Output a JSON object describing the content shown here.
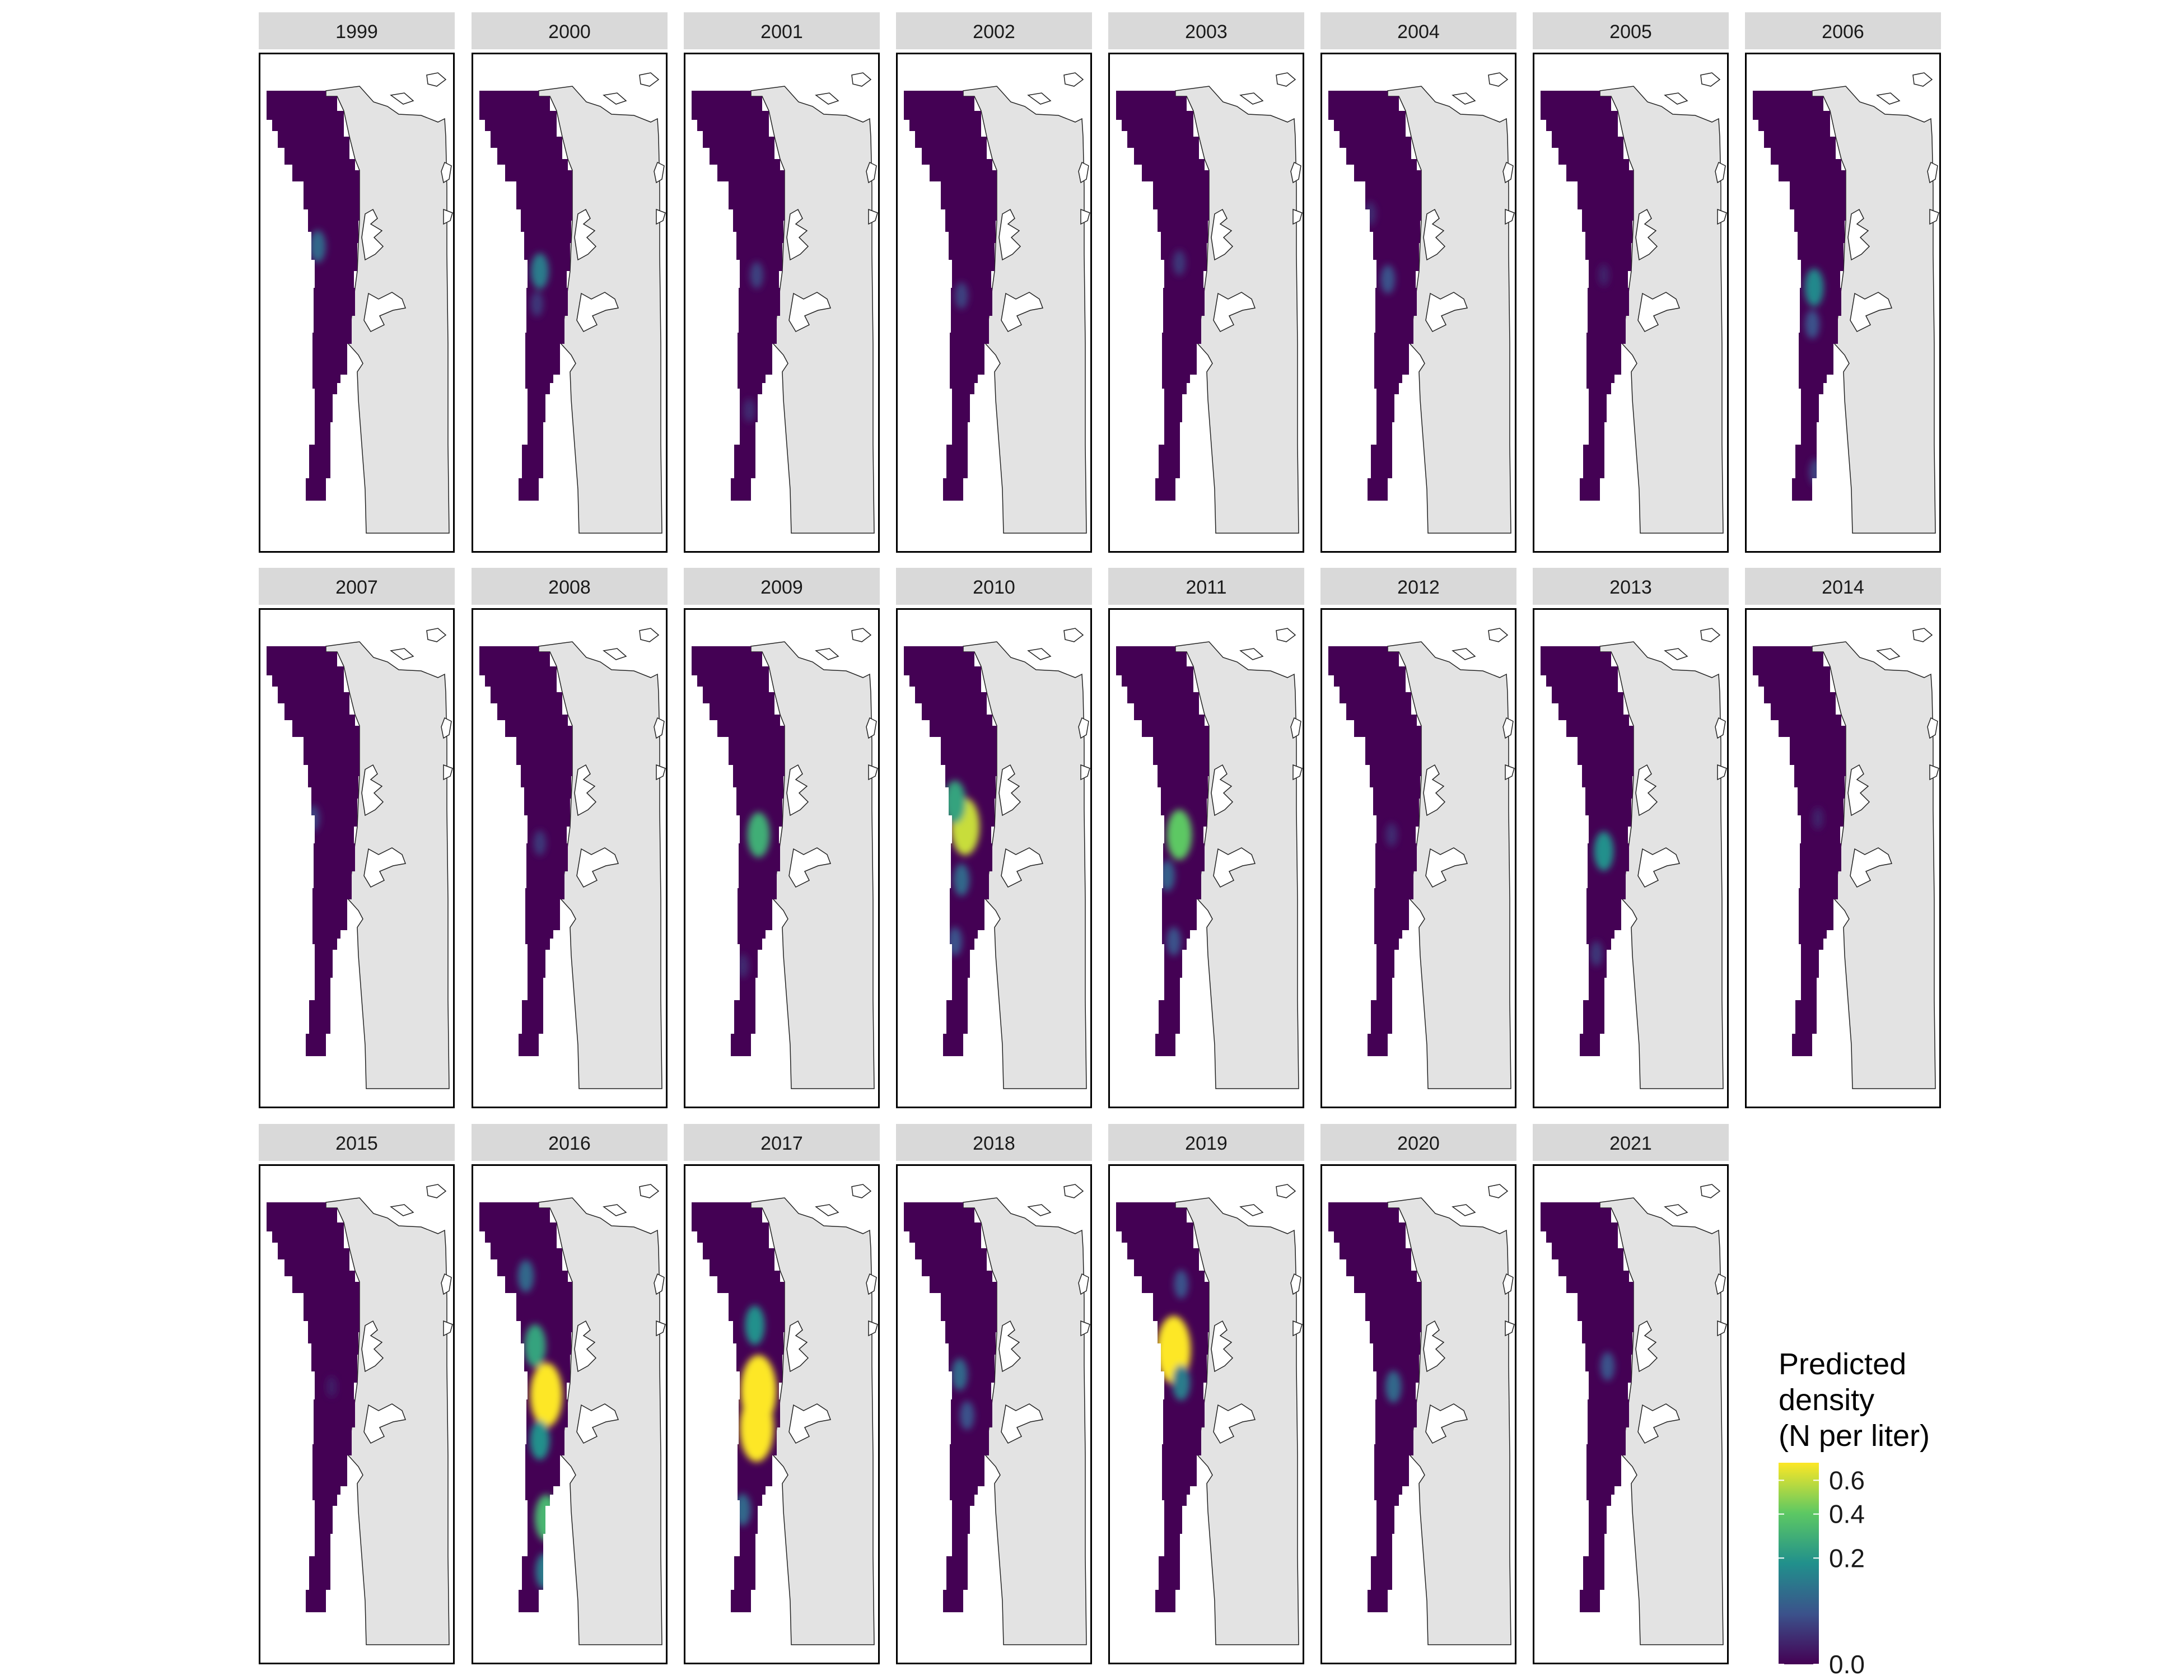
{
  "chart_data": {
    "type": "heatmap",
    "title": "",
    "panel_labels": [
      "1999",
      "2000",
      "2001",
      "2002",
      "2003",
      "2004",
      "2005",
      "2006",
      "2007",
      "2008",
      "2009",
      "2010",
      "2011",
      "2012",
      "2013",
      "2014",
      "2015",
      "2016",
      "2017",
      "2018",
      "2019",
      "2020",
      "2021"
    ],
    "hotspots": {
      "1999": [
        {
          "lat": 0.38,
          "lon": 0.55,
          "value": 0.2
        }
      ],
      "2000": [
        {
          "lat": 0.44,
          "lon": 0.65,
          "value": 0.25
        },
        {
          "lat": 0.52,
          "lon": 0.62,
          "value": 0.1
        }
      ],
      "2001": [
        {
          "lat": 0.45,
          "lon": 0.7,
          "value": 0.12
        },
        {
          "lat": 0.78,
          "lon": 0.62,
          "value": 0.08
        }
      ],
      "2002": [
        {
          "lat": 0.5,
          "lon": 0.62,
          "value": 0.12
        }
      ],
      "2003": [
        {
          "lat": 0.42,
          "lon": 0.68,
          "value": 0.1
        }
      ],
      "2004": [
        {
          "lat": 0.46,
          "lon": 0.64,
          "value": 0.15
        },
        {
          "lat": 0.3,
          "lon": 0.45,
          "value": 0.08
        }
      ],
      "2005": [
        {
          "lat": 0.45,
          "lon": 0.68,
          "value": 0.06
        }
      ],
      "2006": [
        {
          "lat": 0.48,
          "lon": 0.66,
          "value": 0.28
        },
        {
          "lat": 0.57,
          "lon": 0.64,
          "value": 0.15
        },
        {
          "lat": 0.93,
          "lon": 0.68,
          "value": 0.12
        }
      ],
      "2007": [
        {
          "lat": 0.42,
          "lon": 0.5,
          "value": 0.12
        }
      ],
      "2008": [
        {
          "lat": 0.48,
          "lon": 0.65,
          "value": 0.1
        }
      ],
      "2009": [
        {
          "lat": 0.46,
          "lon": 0.72,
          "value": 0.38
        },
        {
          "lat": 0.78,
          "lon": 0.55,
          "value": 0.08
        }
      ],
      "2010": [
        {
          "lat": 0.44,
          "lon": 0.66,
          "value": 0.55
        },
        {
          "lat": 0.38,
          "lon": 0.55,
          "value": 0.35
        },
        {
          "lat": 0.57,
          "lon": 0.62,
          "value": 0.2
        },
        {
          "lat": 0.72,
          "lon": 0.55,
          "value": 0.15
        }
      ],
      "2011": [
        {
          "lat": 0.46,
          "lon": 0.68,
          "value": 0.45
        },
        {
          "lat": 0.56,
          "lon": 0.55,
          "value": 0.18
        },
        {
          "lat": 0.72,
          "lon": 0.62,
          "value": 0.15
        }
      ],
      "2012": [
        {
          "lat": 0.46,
          "lon": 0.68,
          "value": 0.08
        }
      ],
      "2013": [
        {
          "lat": 0.5,
          "lon": 0.68,
          "value": 0.3
        },
        {
          "lat": 0.75,
          "lon": 0.6,
          "value": 0.1
        }
      ],
      "2014": [
        {
          "lat": 0.42,
          "lon": 0.7,
          "value": 0.06
        }
      ],
      "2015": [
        {
          "lat": 0.45,
          "lon": 0.7,
          "value": 0.05
        }
      ],
      "2016": [
        {
          "lat": 0.47,
          "lon": 0.72,
          "value": 0.65
        },
        {
          "lat": 0.35,
          "lon": 0.6,
          "value": 0.35
        },
        {
          "lat": 0.58,
          "lon": 0.65,
          "value": 0.3
        },
        {
          "lat": 0.77,
          "lon": 0.72,
          "value": 0.4
        },
        {
          "lat": 0.18,
          "lon": 0.5,
          "value": 0.2
        },
        {
          "lat": 0.9,
          "lon": 0.7,
          "value": 0.25
        }
      ],
      "2017": [
        {
          "lat": 0.46,
          "lon": 0.72,
          "value": 0.75
        },
        {
          "lat": 0.55,
          "lon": 0.7,
          "value": 0.7
        },
        {
          "lat": 0.3,
          "lon": 0.68,
          "value": 0.3
        },
        {
          "lat": 0.75,
          "lon": 0.55,
          "value": 0.2
        }
      ],
      "2018": [
        {
          "lat": 0.42,
          "lon": 0.6,
          "value": 0.2
        },
        {
          "lat": 0.52,
          "lon": 0.68,
          "value": 0.15
        }
      ],
      "2019": [
        {
          "lat": 0.36,
          "lon": 0.62,
          "value": 0.7
        },
        {
          "lat": 0.44,
          "lon": 0.7,
          "value": 0.25
        },
        {
          "lat": 0.2,
          "lon": 0.7,
          "value": 0.15
        }
      ],
      "2020": [
        {
          "lat": 0.45,
          "lon": 0.7,
          "value": 0.2
        }
      ],
      "2021": [
        {
          "lat": 0.4,
          "lon": 0.72,
          "value": 0.15
        }
      ]
    },
    "legend": {
      "title_lines": [
        "Predicted",
        "density",
        "(N per liter)"
      ],
      "ticks": [
        {
          "label": "0.6",
          "value": 0.6
        },
        {
          "label": "0.4",
          "value": 0.4
        },
        {
          "label": "0.2",
          "value": 0.2
        },
        {
          "label": "0.0",
          "value": 0.0
        }
      ],
      "colors": [
        "#440154",
        "#3b528b",
        "#21908c",
        "#5dc863",
        "#fde725"
      ]
    },
    "colors": {
      "low": "#440154",
      "land": "#e3e3e3",
      "strip": "#d9d9d9",
      "border": "#000000"
    }
  }
}
